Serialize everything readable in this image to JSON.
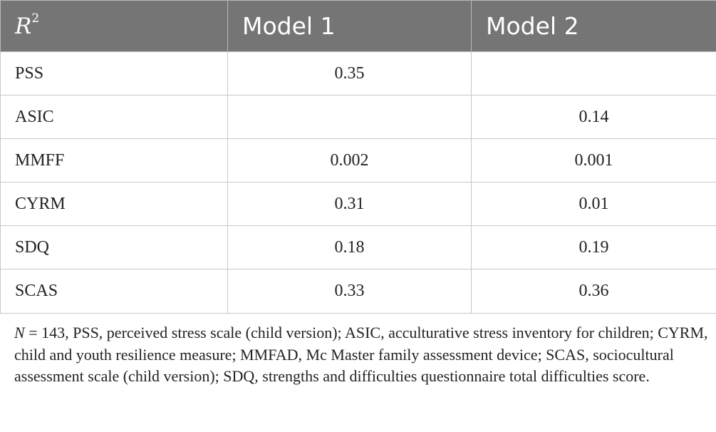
{
  "table": {
    "header": {
      "r_label": "R",
      "r_sup": "2",
      "col1": "Model 1",
      "col2": "Model 2"
    },
    "rows": [
      {
        "label": "PSS",
        "model1": "0.35",
        "model2": ""
      },
      {
        "label": "ASIC",
        "model1": "",
        "model2": "0.14"
      },
      {
        "label": "MMFF",
        "model1": "0.002",
        "model2": "0.001"
      },
      {
        "label": "CYRM",
        "model1": "0.31",
        "model2": "0.01"
      },
      {
        "label": "SDQ",
        "model1": "0.18",
        "model2": "0.19"
      },
      {
        "label": "SCAS",
        "model1": "0.33",
        "model2": "0.36"
      }
    ]
  },
  "footnote": {
    "n_symbol": "N",
    "text": " = 143, PSS, perceived stress scale (child version); ASIC, acculturative stress inventory for children; CYRM, child and youth resilience measure; MMFAD, Mc Master family assessment device; SCAS, sociocultural assessment scale (child version); SDQ, strengths and difficulties questionnaire total difficulties score."
  }
}
